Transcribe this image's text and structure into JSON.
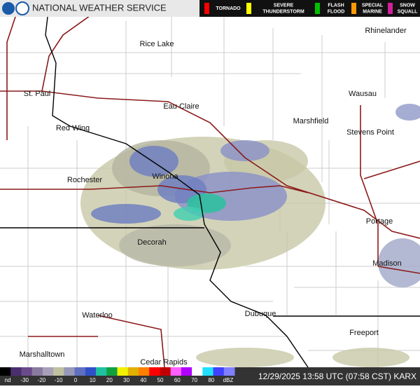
{
  "header": {
    "title": "NATIONAL WEATHER SERVICE"
  },
  "warnings": [
    {
      "lines": [
        "TORNADO"
      ],
      "color": "#ff0000"
    },
    {
      "lines": [
        "SEVERE",
        "THUNDERSTORM"
      ],
      "color": "#ffff00"
    },
    {
      "lines": [
        "FLASH",
        "FLOOD"
      ],
      "color": "#00c000"
    },
    {
      "lines": [
        "SPECIAL",
        "MARINE"
      ],
      "color": "#ff9900"
    },
    {
      "lines": [
        "SNOW",
        "SQUALL"
      ],
      "color": "#d0209a"
    }
  ],
  "cities": [
    "Rhinelander",
    "Rice Lake",
    "St. Paul",
    "Wausau",
    "Eau Claire",
    "Marshfield",
    "Red Wing",
    "Stevens Point",
    "Winona",
    "Rochester",
    "Portage",
    "Decorah",
    "Madison",
    "Waterloo",
    "Dubuque",
    "Freeport",
    "Marshalltown",
    "Cedar Rapids"
  ],
  "scale": {
    "labels": [
      "nd",
      -30,
      -20,
      -10,
      0,
      10,
      20,
      30,
      40,
      50,
      60,
      70,
      80,
      "dBZ"
    ]
  },
  "timestamp": "12/29/2025 13:58 UTC (07:58 CST) KARX"
}
